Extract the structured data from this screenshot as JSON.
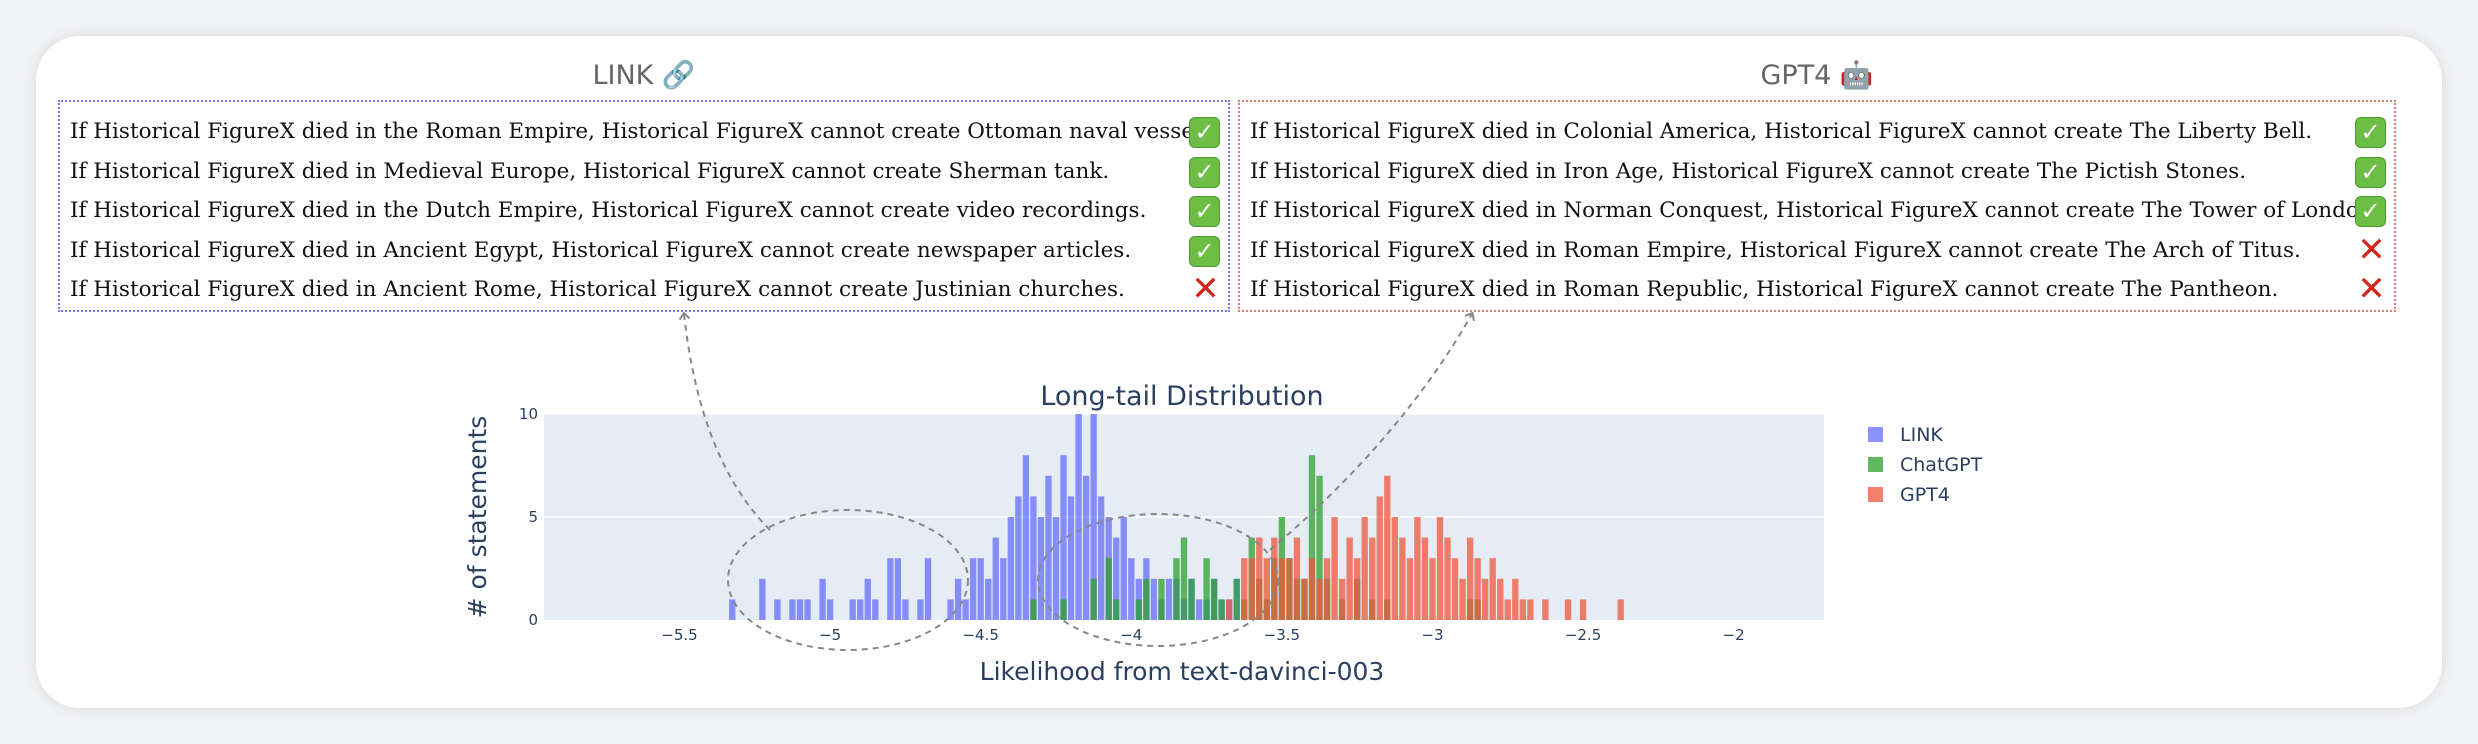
{
  "panels": {
    "link": {
      "title": "LINK 🔗",
      "statements": [
        {
          "text": "If Historical FigureX died in the Roman Empire, Historical FigureX cannot create Ottoman naval vessel.",
          "correct": true
        },
        {
          "text": "If Historical FigureX died in Medieval Europe, Historical FigureX cannot create Sherman tank.",
          "correct": true
        },
        {
          "text": "If Historical FigureX died in the Dutch Empire, Historical FigureX cannot create video recordings.",
          "correct": true
        },
        {
          "text": "If Historical FigureX died in Ancient Egypt, Historical FigureX cannot create newspaper articles.",
          "correct": true
        },
        {
          "text": "If Historical FigureX died in Ancient Rome, Historical FigureX cannot create Justinian churches.",
          "correct": false
        }
      ]
    },
    "gpt4": {
      "title": "GPT4 🤖",
      "statements": [
        {
          "text": "If Historical FigureX died in Colonial America, Historical FigureX cannot create The Liberty Bell.",
          "correct": true
        },
        {
          "text": "If Historical FigureX died in Iron Age, Historical FigureX cannot create The Pictish Stones.",
          "correct": true
        },
        {
          "text": "If Historical FigureX died in Norman Conquest, Historical FigureX cannot create The Tower of London.",
          "correct": true
        },
        {
          "text": "If Historical FigureX died in Roman Empire, Historical FigureX cannot create The Arch of Titus.",
          "correct": false
        },
        {
          "text": "If Historical FigureX died in Roman Republic, Historical FigureX cannot create The Pantheon.",
          "correct": false
        }
      ]
    }
  },
  "icons": {
    "correct": "check-mark-icon",
    "incorrect": "cross-mark-icon"
  },
  "chart_data": {
    "type": "histogram",
    "title": "Long-tail Distribution",
    "xlabel": "Likelihood from text-davinci-003",
    "ylabel": "# of statements",
    "xlim": [
      -5.95,
      -1.7
    ],
    "ylim": [
      0,
      10
    ],
    "xticks": [
      -5.5,
      -5,
      -4.5,
      -4,
      -3.5,
      -3,
      -2.5,
      -2
    ],
    "xtick_labels": [
      "−5.5",
      "−5",
      "−4.5",
      "−4",
      "−3.5",
      "−3",
      "−2.5",
      "−2"
    ],
    "yticks": [
      0,
      5,
      10
    ],
    "bin_width": 0.025,
    "grid": true,
    "legend_position": "right",
    "series": [
      {
        "name": "LINK",
        "color": "#636efa",
        "bins": [
          [
            -5.325,
            1
          ],
          [
            -5.225,
            2
          ],
          [
            -5.175,
            1
          ],
          [
            -5.125,
            1
          ],
          [
            -5.1,
            1
          ],
          [
            -5.075,
            1
          ],
          [
            -5.025,
            2
          ],
          [
            -5.0,
            1
          ],
          [
            -4.925,
            1
          ],
          [
            -4.9,
            1
          ],
          [
            -4.875,
            2
          ],
          [
            -4.85,
            1
          ],
          [
            -4.8,
            3
          ],
          [
            -4.775,
            3
          ],
          [
            -4.75,
            1
          ],
          [
            -4.7,
            1
          ],
          [
            -4.675,
            3
          ],
          [
            -4.6,
            1
          ],
          [
            -4.575,
            2
          ],
          [
            -4.55,
            1
          ],
          [
            -4.525,
            3
          ],
          [
            -4.5,
            3
          ],
          [
            -4.475,
            2
          ],
          [
            -4.45,
            4
          ],
          [
            -4.425,
            3
          ],
          [
            -4.4,
            5
          ],
          [
            -4.375,
            6
          ],
          [
            -4.35,
            8
          ],
          [
            -4.325,
            6
          ],
          [
            -4.3,
            5
          ],
          [
            -4.275,
            7
          ],
          [
            -4.25,
            5
          ],
          [
            -4.225,
            8
          ],
          [
            -4.2,
            6
          ],
          [
            -4.175,
            10
          ],
          [
            -4.15,
            7
          ],
          [
            -4.125,
            10
          ],
          [
            -4.1,
            6
          ],
          [
            -4.075,
            5
          ],
          [
            -4.05,
            4
          ],
          [
            -4.025,
            5
          ],
          [
            -4.0,
            3
          ],
          [
            -3.975,
            2
          ],
          [
            -3.95,
            3
          ],
          [
            -3.925,
            2
          ],
          [
            -3.9,
            1
          ],
          [
            -3.875,
            2
          ],
          [
            -3.85,
            2
          ],
          [
            -3.825,
            1
          ],
          [
            -3.8,
            2
          ],
          [
            -3.775,
            1
          ],
          [
            -3.75,
            1
          ],
          [
            -3.725,
            2
          ],
          [
            -3.7,
            1
          ],
          [
            -3.675,
            1
          ],
          [
            -3.65,
            2
          ]
        ]
      },
      {
        "name": "ChatGPT",
        "color": "#2ca02c",
        "bins": [
          [
            -4.325,
            1
          ],
          [
            -4.225,
            1
          ],
          [
            -4.125,
            2
          ],
          [
            -4.075,
            3
          ],
          [
            -4.05,
            1
          ],
          [
            -3.975,
            1
          ],
          [
            -3.95,
            2
          ],
          [
            -3.9,
            2
          ],
          [
            -3.85,
            3
          ],
          [
            -3.825,
            4
          ],
          [
            -3.8,
            2
          ],
          [
            -3.75,
            3
          ],
          [
            -3.725,
            2
          ],
          [
            -3.7,
            1
          ],
          [
            -3.65,
            2
          ],
          [
            -3.625,
            1
          ],
          [
            -3.6,
            4
          ],
          [
            -3.575,
            2
          ],
          [
            -3.55,
            1
          ],
          [
            -3.525,
            3
          ],
          [
            -3.5,
            5
          ],
          [
            -3.475,
            3
          ],
          [
            -3.45,
            2
          ],
          [
            -3.425,
            2
          ],
          [
            -3.4,
            8
          ],
          [
            -3.375,
            7
          ],
          [
            -3.35,
            2
          ],
          [
            -3.3,
            1
          ],
          [
            -3.25,
            2
          ],
          [
            -3.2,
            1
          ],
          [
            -3.15,
            1
          ],
          [
            -2.875,
            1
          ],
          [
            -2.85,
            1
          ]
        ]
      },
      {
        "name": "GPT4",
        "color": "#ef553b",
        "bins": [
          [
            -3.675,
            1
          ],
          [
            -3.625,
            3
          ],
          [
            -3.6,
            3
          ],
          [
            -3.575,
            4
          ],
          [
            -3.55,
            3
          ],
          [
            -3.525,
            4
          ],
          [
            -3.5,
            3
          ],
          [
            -3.475,
            3
          ],
          [
            -3.45,
            4
          ],
          [
            -3.425,
            2
          ],
          [
            -3.4,
            3
          ],
          [
            -3.375,
            2
          ],
          [
            -3.35,
            3
          ],
          [
            -3.325,
            5
          ],
          [
            -3.3,
            2
          ],
          [
            -3.275,
            4
          ],
          [
            -3.25,
            3
          ],
          [
            -3.225,
            5
          ],
          [
            -3.2,
            4
          ],
          [
            -3.175,
            6
          ],
          [
            -3.15,
            7
          ],
          [
            -3.125,
            5
          ],
          [
            -3.1,
            4
          ],
          [
            -3.075,
            3
          ],
          [
            -3.05,
            5
          ],
          [
            -3.025,
            4
          ],
          [
            -3.0,
            3
          ],
          [
            -2.975,
            5
          ],
          [
            -2.95,
            4
          ],
          [
            -2.925,
            3
          ],
          [
            -2.9,
            2
          ],
          [
            -2.875,
            4
          ],
          [
            -2.85,
            3
          ],
          [
            -2.825,
            2
          ],
          [
            -2.8,
            3
          ],
          [
            -2.775,
            2
          ],
          [
            -2.75,
            1
          ],
          [
            -2.725,
            2
          ],
          [
            -2.7,
            1
          ],
          [
            -2.675,
            1
          ],
          [
            -2.625,
            1
          ],
          [
            -2.55,
            1
          ],
          [
            -2.5,
            1
          ],
          [
            -2.375,
            1
          ]
        ]
      }
    ]
  }
}
